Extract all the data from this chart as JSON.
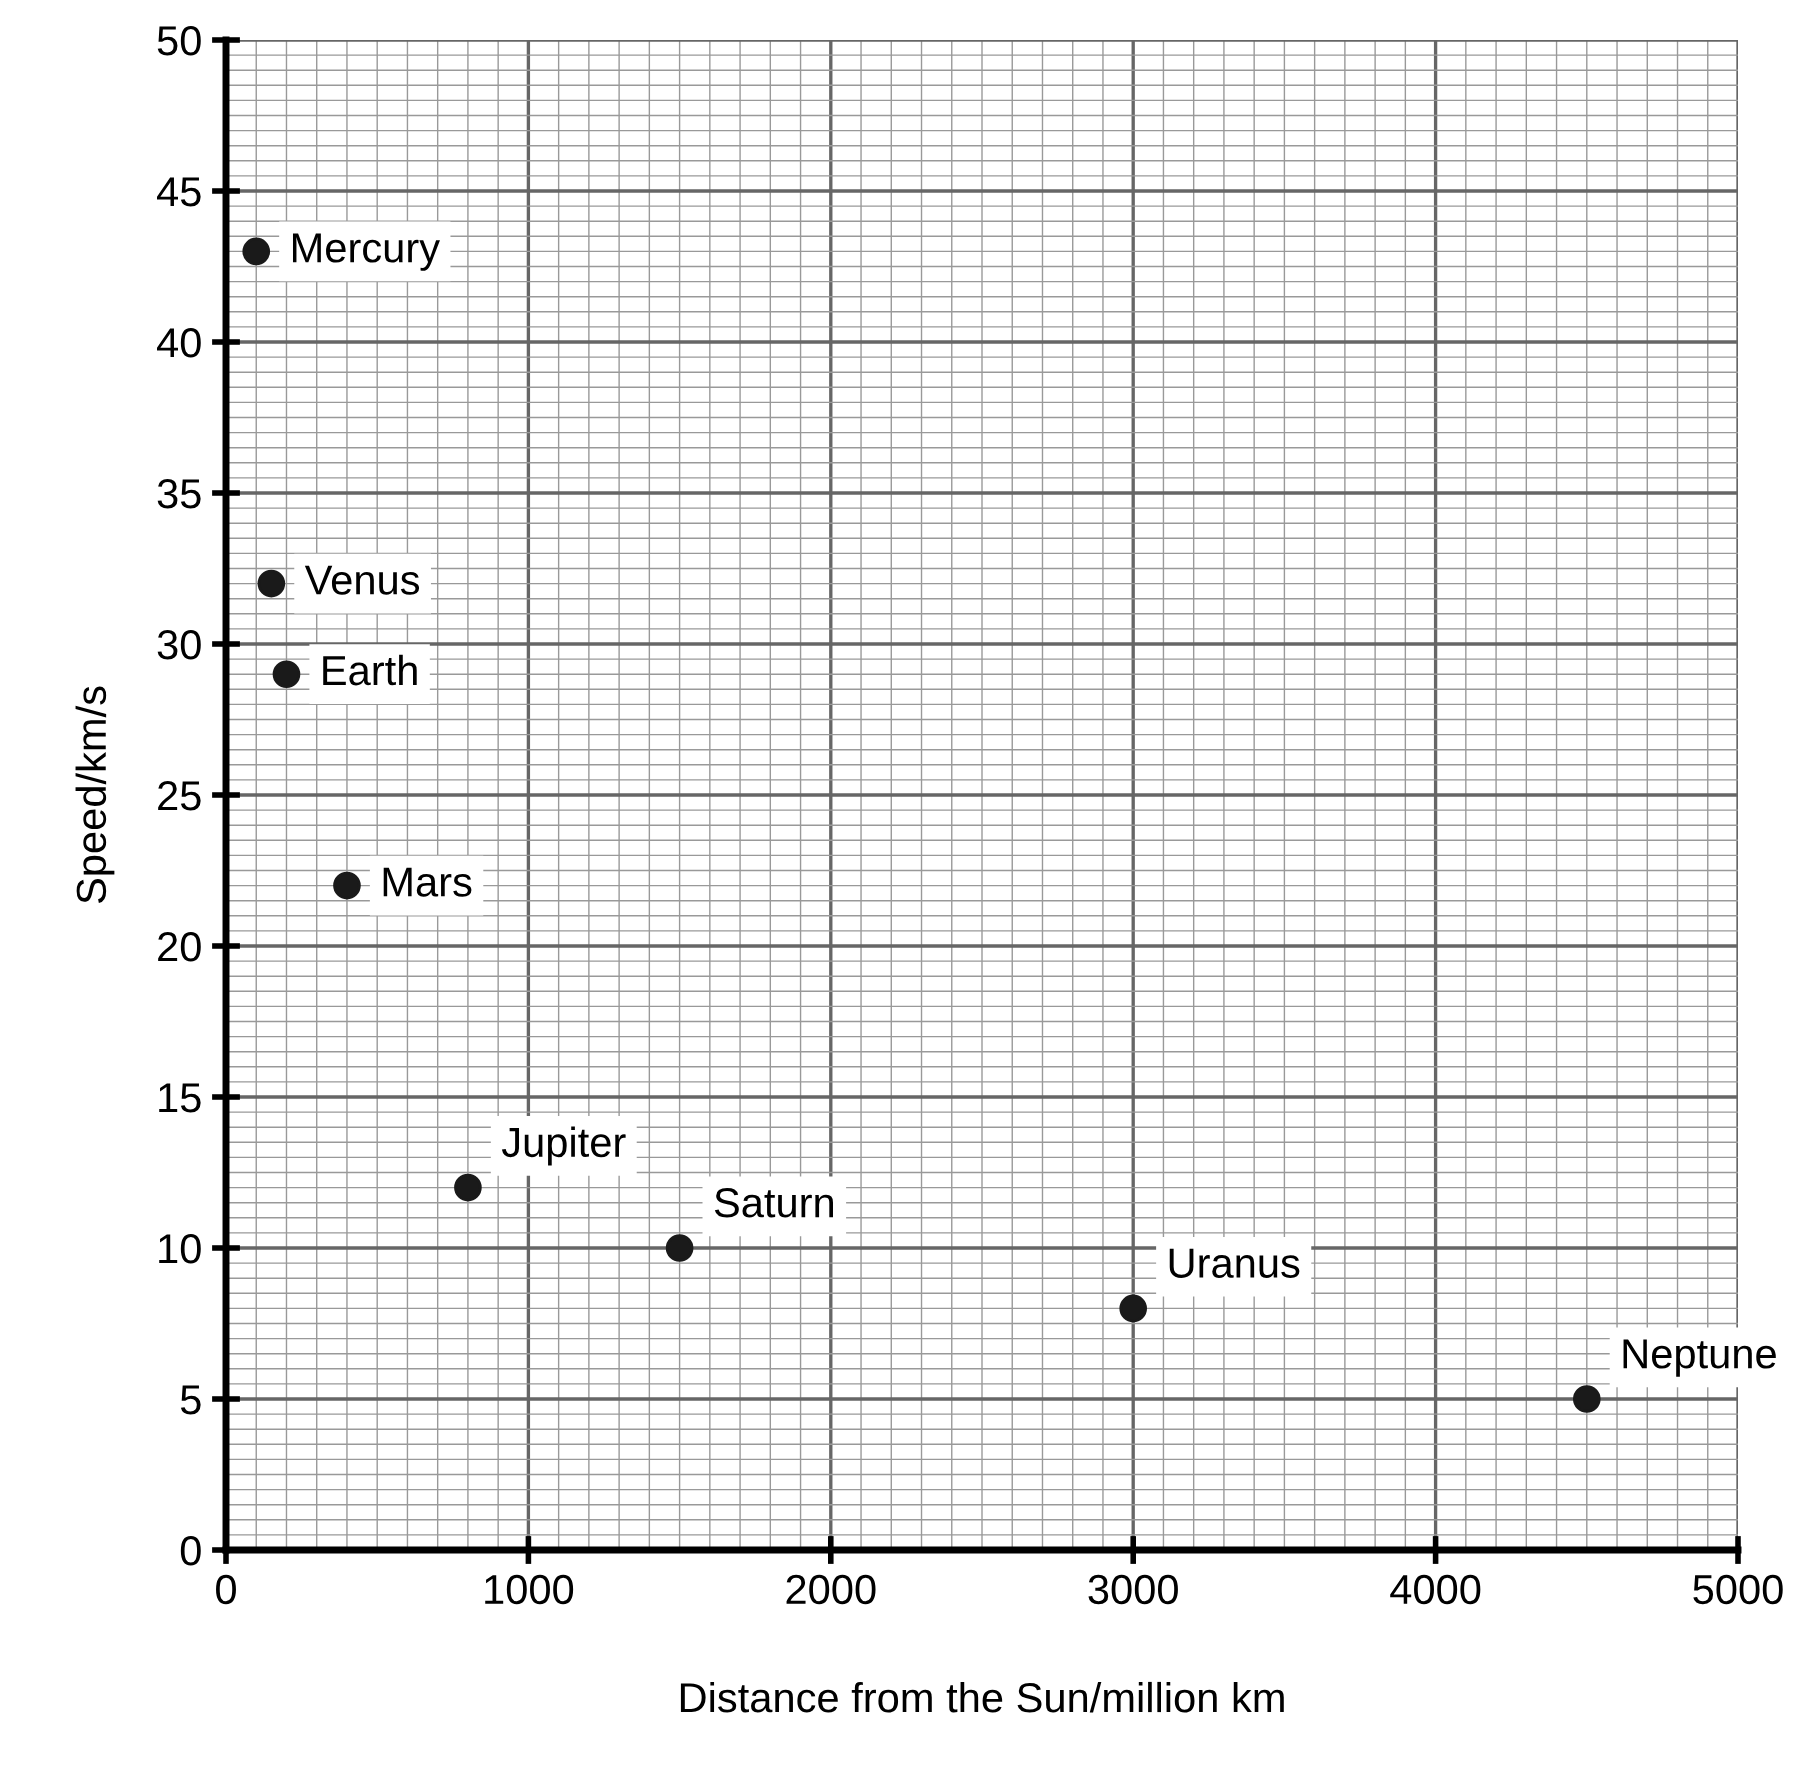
{
  "chart_data": {
    "type": "scatter",
    "xlabel": "Distance from the Sun/million km",
    "ylabel": "Speed/km/s",
    "x": [
      100,
      150,
      200,
      400,
      800,
      1500,
      3000,
      4500
    ],
    "values": [
      43,
      32,
      29,
      22,
      12,
      10,
      8,
      5
    ],
    "color": "#1a1a1a",
    "marker": "circle",
    "xlim": [
      0,
      5000
    ],
    "ylim": [
      0,
      50
    ],
    "xticks": [
      0,
      1000,
      2000,
      3000,
      4000,
      5000
    ],
    "yticks": [
      0,
      5,
      10,
      15,
      20,
      25,
      30,
      35,
      40,
      45,
      50
    ],
    "grid": true,
    "annotations": [
      {
        "text": "Mercury",
        "x": 100,
        "y": 43
      },
      {
        "text": "Venus",
        "x": 150,
        "y": 32
      },
      {
        "text": "Earth",
        "x": 200,
        "y": 29
      },
      {
        "text": "Mars",
        "x": 400,
        "y": 22
      },
      {
        "text": "Jupiter",
        "x": 800,
        "y": 12
      },
      {
        "text": "Saturn",
        "x": 1500,
        "y": 10
      },
      {
        "text": "Uranus",
        "x": 3000,
        "y": 8
      },
      {
        "text": "Neptune",
        "x": 4500,
        "y": 5
      }
    ]
  }
}
